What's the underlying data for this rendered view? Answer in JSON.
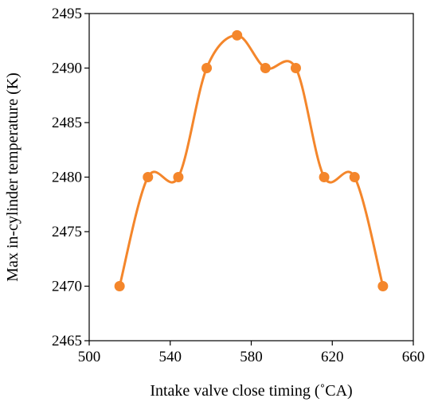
{
  "chart_data": {
    "type": "line",
    "smooth": true,
    "title": "",
    "xlabel": "Intake valve close timing (˚CA)",
    "ylabel": "Max in-cylinder temperature (K)",
    "xlim": [
      500,
      660
    ],
    "ylim": [
      2465,
      2495
    ],
    "xticks": [
      500,
      540,
      580,
      620,
      660
    ],
    "yticks": [
      2465,
      2470,
      2475,
      2480,
      2485,
      2490,
      2495
    ],
    "xtick_labels": [
      "500",
      "540",
      "580",
      "620",
      "660"
    ],
    "ytick_labels": [
      "2465",
      "2470",
      "2475",
      "2480",
      "2485",
      "2490",
      "2495"
    ],
    "grid": false,
    "legend": "none",
    "series": [
      {
        "color": "#F4862B",
        "x": [
          515,
          529,
          544,
          558,
          573,
          587,
          602,
          616,
          631,
          645
        ],
        "y": [
          2470,
          2480,
          2480,
          2490,
          2493,
          2490,
          2490,
          2480,
          2480,
          2470
        ]
      }
    ]
  }
}
